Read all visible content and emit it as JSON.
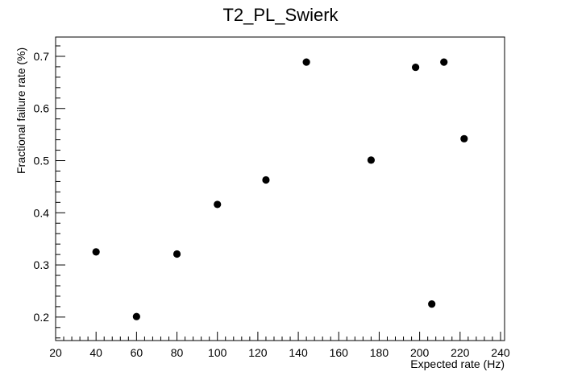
{
  "chart_data": {
    "type": "scatter",
    "title": "T2_PL_Swierk",
    "xlabel": "Expected rate (Hz)",
    "ylabel": "Fractional failure rate (%)",
    "xlim": [
      20,
      242
    ],
    "ylim": [
      0.155,
      0.737
    ],
    "xticks": [
      20,
      40,
      60,
      80,
      100,
      120,
      140,
      160,
      180,
      200,
      220,
      240
    ],
    "yticks": [
      0.2,
      0.3,
      0.4,
      0.5,
      0.6,
      0.7
    ],
    "grid": false,
    "legend": "none",
    "marker_color": "#000000",
    "points": [
      {
        "x": 40,
        "y": 0.325
      },
      {
        "x": 60,
        "y": 0.201
      },
      {
        "x": 80,
        "y": 0.321
      },
      {
        "x": 100,
        "y": 0.416
      },
      {
        "x": 124,
        "y": 0.463
      },
      {
        "x": 144,
        "y": 0.689
      },
      {
        "x": 176,
        "y": 0.501
      },
      {
        "x": 198,
        "y": 0.679
      },
      {
        "x": 206,
        "y": 0.225
      },
      {
        "x": 212,
        "y": 0.689
      },
      {
        "x": 222,
        "y": 0.542
      }
    ]
  }
}
